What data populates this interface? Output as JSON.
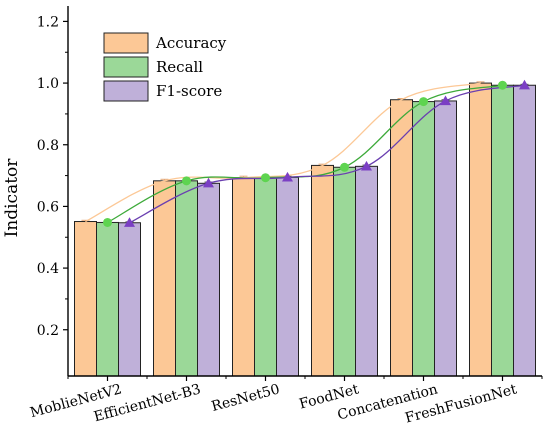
{
  "chart_data": {
    "type": "bar",
    "title": "",
    "xlabel": "",
    "ylabel": "Indicator",
    "ylim": [
      0.05,
      1.25
    ],
    "yticks": [
      0.2,
      0.4,
      0.6,
      0.8,
      1.0,
      1.2
    ],
    "ytick_labels": [
      "0.2",
      "0.4",
      "0.6",
      "0.8",
      "1.0",
      "1.2"
    ],
    "categories": [
      "MoblieNetV2",
      "EfficientNet-B3",
      "ResNet50",
      "FoodNet",
      "Concatenation",
      "FreshFusionNet"
    ],
    "series": [
      {
        "name": "Accuracy",
        "values": [
          0.551,
          0.683,
          0.693,
          0.733,
          0.946,
          1.0
        ],
        "error": [
          0.004,
          0.005,
          0.005,
          0.004,
          0.004,
          0.004
        ]
      },
      {
        "name": "Recall",
        "values": [
          0.548,
          0.683,
          0.693,
          0.727,
          0.94,
          0.993
        ],
        "error": [
          0.003,
          0.004,
          0.004,
          0.004,
          0.004,
          0.003
        ]
      },
      {
        "name": "F1-score",
        "values": [
          0.547,
          0.675,
          0.694,
          0.73,
          0.942,
          0.993
        ],
        "error": [
          0.003,
          0.004,
          0.004,
          0.004,
          0.004,
          0.003
        ]
      }
    ],
    "colors": {
      "bar_fills": [
        "#fcc896",
        "#9bd898",
        "#bfb0d9"
      ],
      "line_colors": [
        "#fcc896",
        "#3daa3a",
        "#6a3fb0"
      ],
      "marker_colors": [
        "#fcc896",
        "#5ed450",
        "#7b3fc4"
      ]
    },
    "trend_lines": true,
    "markers": [
      "none",
      "circle",
      "triangle"
    ],
    "legend": {
      "position": "top-left",
      "entries": [
        "Accuracy",
        "Recall",
        "F1-score"
      ]
    },
    "grid": false
  }
}
